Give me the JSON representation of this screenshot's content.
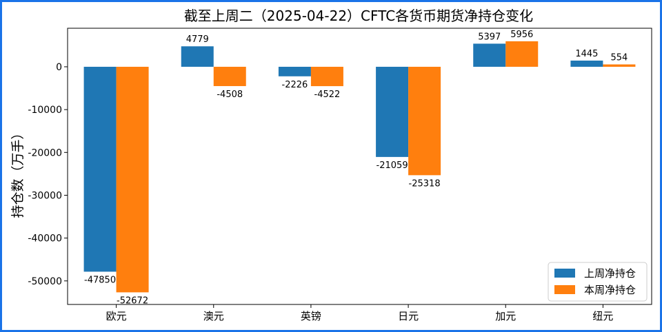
{
  "chart_data": {
    "type": "bar",
    "title": "截至上周二（2025-04-22）CFTC各货币期货净持仓变化",
    "xlabel": "",
    "ylabel": "持仓数（万手）",
    "categories": [
      "欧元",
      "澳元",
      "英镑",
      "日元",
      "加元",
      "纽元"
    ],
    "series": [
      {
        "name": "上周净持仓",
        "color": "#1f77b4",
        "values": [
          -47850,
          4779,
          -2226,
          -21059,
          5397,
          1445
        ]
      },
      {
        "name": "本周净持仓",
        "color": "#ff7f0e",
        "values": [
          -52672,
          -4508,
          -4522,
          -25318,
          5956,
          554
        ]
      }
    ],
    "ylim": [
      -55500,
      9000
    ],
    "yticks": [
      0,
      -10000,
      -20000,
      -30000,
      -40000,
      -50000
    ],
    "legend_position": "lower-right",
    "grid": false
  },
  "frame_color": "#1a73e8"
}
